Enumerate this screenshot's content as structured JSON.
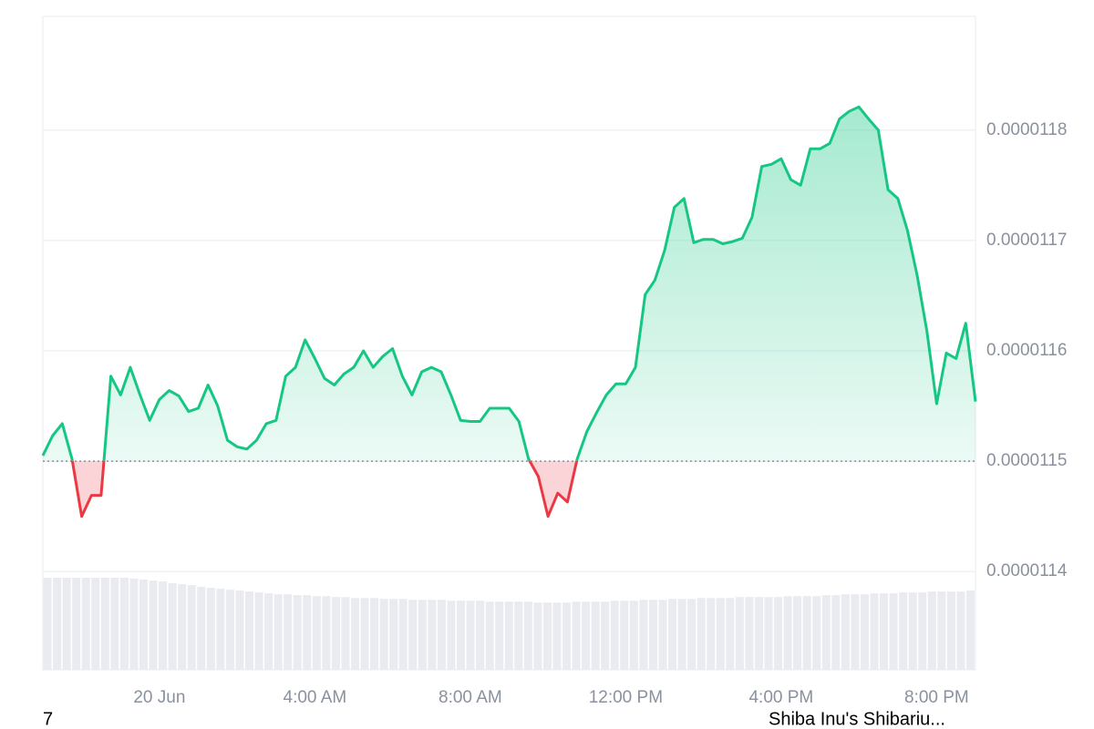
{
  "chart_data": {
    "type": "line",
    "categories": [
      null,
      null,
      null,
      null,
      null,
      null,
      null,
      null,
      null,
      null,
      null,
      null,
      "20 Jun",
      null,
      null,
      null,
      null,
      null,
      null,
      null,
      null,
      null,
      null,
      null,
      null,
      null,
      null,
      null,
      "4:00 AM",
      null,
      null,
      null,
      null,
      null,
      null,
      null,
      null,
      null,
      null,
      null,
      null,
      null,
      null,
      null,
      "8:00 AM",
      null,
      null,
      null,
      null,
      null,
      null,
      null,
      null,
      null,
      null,
      null,
      null,
      null,
      null,
      null,
      "12:00 PM",
      null,
      null,
      null,
      null,
      null,
      null,
      null,
      null,
      null,
      null,
      null,
      null,
      null,
      null,
      null,
      "4:00 PM",
      null,
      null,
      null,
      null,
      null,
      null,
      null,
      null,
      null,
      null,
      null,
      null,
      null,
      null,
      null,
      "8:00 PM",
      null,
      null,
      null,
      null
    ],
    "values": [
      1.1505e-05,
      1.1523e-05,
      1.1534e-05,
      1.1502e-05,
      1.145e-05,
      1.1469e-05,
      1.1469e-05,
      1.1577e-05,
      1.156e-05,
      1.1585e-05,
      1.156e-05,
      1.1537e-05,
      1.1556e-05,
      1.1564e-05,
      1.1559e-05,
      1.1545e-05,
      1.1548e-05,
      1.1569e-05,
      1.155e-05,
      1.1519e-05,
      1.1513e-05,
      1.1511e-05,
      1.1519e-05,
      1.1534e-05,
      1.1537e-05,
      1.1577e-05,
      1.1585e-05,
      1.161e-05,
      1.1593e-05,
      1.1575e-05,
      1.1569e-05,
      1.1579e-05,
      1.1585e-05,
      1.16e-05,
      1.1585e-05,
      1.1595e-05,
      1.1602e-05,
      1.1577e-05,
      1.156e-05,
      1.1581e-05,
      1.1585e-05,
      1.1581e-05,
      1.156e-05,
      1.1537e-05,
      1.1536e-05,
      1.1536e-05,
      1.1548e-05,
      1.1548e-05,
      1.1548e-05,
      1.1536e-05,
      1.1502e-05,
      1.1486e-05,
      1.145e-05,
      1.1471e-05,
      1.1463e-05,
      1.1502e-05,
      1.1527e-05,
      1.1544e-05,
      1.156e-05,
      1.157e-05,
      1.157e-05,
      1.1585e-05,
      1.1651e-05,
      1.1664e-05,
      1.1691e-05,
      1.173e-05,
      1.1738e-05,
      1.1698e-05,
      1.1701e-05,
      1.1701e-05,
      1.1697e-05,
      1.1699e-05,
      1.1702e-05,
      1.1721e-05,
      1.1767e-05,
      1.1769e-05,
      1.1774e-05,
      1.1755e-05,
      1.175e-05,
      1.1783e-05,
      1.1783e-05,
      1.1788e-05,
      1.181e-05,
      1.1817e-05,
      1.1821e-05,
      1.181e-05,
      1.18e-05,
      1.1746e-05,
      1.1738e-05,
      1.1709e-05,
      1.1668e-05,
      1.1618e-05,
      1.1552e-05,
      1.1598e-05,
      1.1593e-05,
      1.1625e-05,
      1.1554e-05
    ],
    "baseline": 1.15e-05,
    "color_up": "#16c784",
    "color_down": "#ea3943",
    "ylim": [
      1.1311e-05,
      1.1903e-05
    ],
    "yticks": [
      1.14e-05,
      1.15e-05,
      1.16e-05,
      1.17e-05,
      1.18e-05
    ],
    "grid": true,
    "volumes": [
      100,
      100,
      100,
      100,
      100,
      100,
      100,
      100,
      100,
      99,
      98,
      97,
      96,
      94,
      93,
      92,
      90,
      89,
      88,
      87,
      86,
      85,
      84,
      83,
      82,
      82,
      81,
      81,
      80,
      80,
      79,
      79,
      78,
      78,
      78,
      77,
      77,
      77,
      76,
      76,
      76,
      76,
      75,
      75,
      75,
      75,
      74,
      74,
      74,
      74,
      74,
      73,
      73,
      73,
      73,
      74,
      74,
      74,
      74,
      75,
      75,
      75,
      76,
      76,
      76,
      77,
      77,
      77,
      78,
      78,
      78,
      78,
      79,
      79,
      79,
      79,
      79,
      80,
      80,
      80,
      80,
      81,
      81,
      82,
      82,
      82,
      83,
      83,
      83,
      84,
      84,
      84,
      85,
      85,
      85,
      85,
      86
    ],
    "volume_color": "#e9ebf0",
    "caption_left": "7",
    "caption_right": "Shiba Inu's Shibariu..."
  }
}
